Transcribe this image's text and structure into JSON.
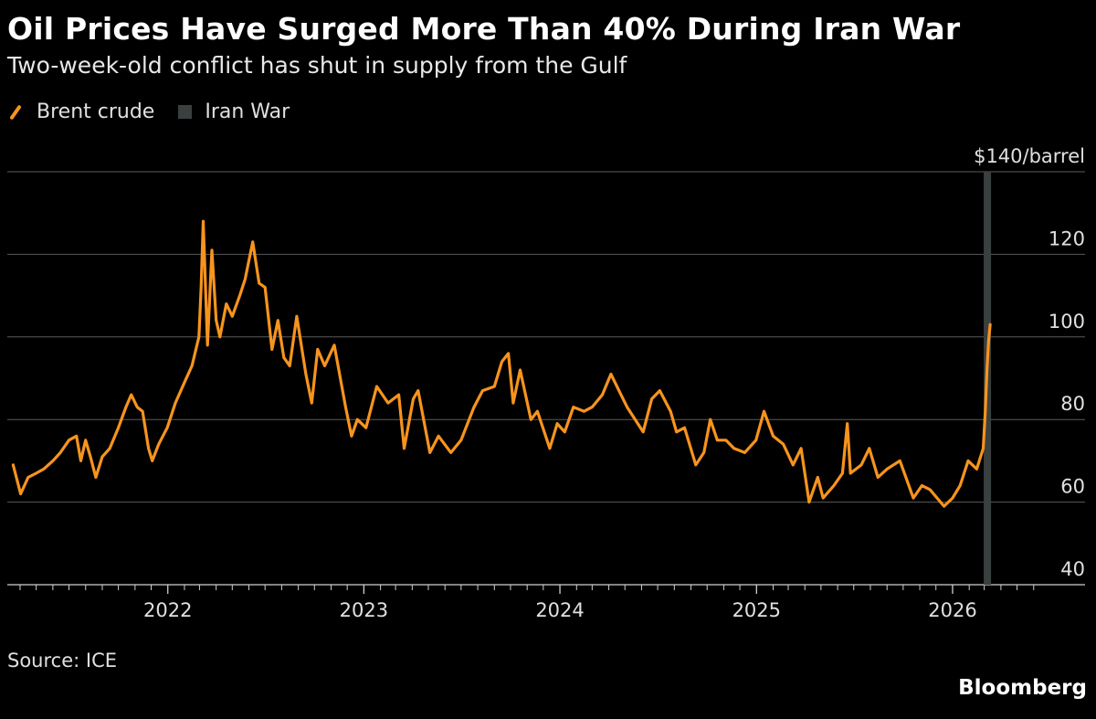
{
  "chart_data": {
    "type": "line",
    "title": "Oil Prices Have Surged More Than 40% During Iran War",
    "subtitle": "Two-week-old conflict has shut in supply from the Gulf",
    "ylabel": "$140/barrel",
    "ylim": [
      40,
      140
    ],
    "yticks": [
      {
        "value": 140,
        "label": "$140/barrel"
      },
      {
        "value": 120,
        "label": "120"
      },
      {
        "value": 100,
        "label": "100"
      },
      {
        "value": 80,
        "label": "80"
      },
      {
        "value": 60,
        "label": "60"
      },
      {
        "value": 40,
        "label": "40"
      }
    ],
    "xlim": [
      "2021-03-15",
      "2026-06-15"
    ],
    "xticks": [
      {
        "date": "2022-01-01",
        "label": "2022"
      },
      {
        "date": "2023-01-01",
        "label": "2023"
      },
      {
        "date": "2024-01-01",
        "label": "2024"
      },
      {
        "date": "2025-01-01",
        "label": "2025"
      },
      {
        "date": "2026-01-01",
        "label": "2026"
      }
    ],
    "grid": true,
    "legend": [
      {
        "label": "Brent crude",
        "kind": "line",
        "color": "#f7941d"
      },
      {
        "label": "Iran War",
        "kind": "area",
        "color": "#3a3f3f"
      }
    ],
    "shaded_region": {
      "name": "Iran War",
      "start": "2026-02-28",
      "end": "2026-03-13"
    },
    "series": [
      {
        "name": "Brent crude",
        "color": "#f7941d",
        "points": [
          [
            "2021-03-19",
            69
          ],
          [
            "2021-04-02",
            62
          ],
          [
            "2021-04-16",
            66
          ],
          [
            "2021-05-01",
            67
          ],
          [
            "2021-05-15",
            68
          ],
          [
            "2021-06-01",
            70
          ],
          [
            "2021-06-15",
            72
          ],
          [
            "2021-07-01",
            75
          ],
          [
            "2021-07-15",
            76
          ],
          [
            "2021-07-23",
            70
          ],
          [
            "2021-08-01",
            75
          ],
          [
            "2021-08-10",
            71
          ],
          [
            "2021-08-20",
            66
          ],
          [
            "2021-09-01",
            71
          ],
          [
            "2021-09-15",
            73
          ],
          [
            "2021-10-01",
            78
          ],
          [
            "2021-10-15",
            83
          ],
          [
            "2021-10-25",
            86
          ],
          [
            "2021-11-05",
            83
          ],
          [
            "2021-11-15",
            82
          ],
          [
            "2021-11-26",
            73
          ],
          [
            "2021-12-03",
            70
          ],
          [
            "2021-12-15",
            74
          ],
          [
            "2021-12-31",
            78
          ],
          [
            "2022-01-15",
            84
          ],
          [
            "2022-02-01",
            89
          ],
          [
            "2022-02-15",
            93
          ],
          [
            "2022-02-28",
            100
          ],
          [
            "2022-03-04",
            112
          ],
          [
            "2022-03-08",
            128
          ],
          [
            "2022-03-16",
            98
          ],
          [
            "2022-03-24",
            121
          ],
          [
            "2022-04-01",
            104
          ],
          [
            "2022-04-08",
            100
          ],
          [
            "2022-04-20",
            108
          ],
          [
            "2022-05-01",
            105
          ],
          [
            "2022-05-15",
            110
          ],
          [
            "2022-05-25",
            114
          ],
          [
            "2022-06-08",
            123
          ],
          [
            "2022-06-20",
            113
          ],
          [
            "2022-07-01",
            112
          ],
          [
            "2022-07-14",
            97
          ],
          [
            "2022-07-25",
            104
          ],
          [
            "2022-08-05",
            95
          ],
          [
            "2022-08-16",
            93
          ],
          [
            "2022-08-29",
            105
          ],
          [
            "2022-09-15",
            91
          ],
          [
            "2022-09-26",
            84
          ],
          [
            "2022-10-07",
            97
          ],
          [
            "2022-10-20",
            93
          ],
          [
            "2022-11-07",
            98
          ],
          [
            "2022-11-28",
            83
          ],
          [
            "2022-12-09",
            76
          ],
          [
            "2022-12-20",
            80
          ],
          [
            "2023-01-05",
            78
          ],
          [
            "2023-01-25",
            88
          ],
          [
            "2023-02-15",
            84
          ],
          [
            "2023-03-07",
            86
          ],
          [
            "2023-03-17",
            73
          ],
          [
            "2023-04-03",
            85
          ],
          [
            "2023-04-12",
            87
          ],
          [
            "2023-05-04",
            72
          ],
          [
            "2023-05-20",
            76
          ],
          [
            "2023-06-12",
            72
          ],
          [
            "2023-07-01",
            75
          ],
          [
            "2023-07-25",
            83
          ],
          [
            "2023-08-10",
            87
          ],
          [
            "2023-09-01",
            88
          ],
          [
            "2023-09-15",
            94
          ],
          [
            "2023-09-27",
            96
          ],
          [
            "2023-10-06",
            84
          ],
          [
            "2023-10-19",
            92
          ],
          [
            "2023-11-08",
            80
          ],
          [
            "2023-11-20",
            82
          ],
          [
            "2023-12-13",
            73
          ],
          [
            "2023-12-27",
            79
          ],
          [
            "2024-01-10",
            77
          ],
          [
            "2024-01-26",
            83
          ],
          [
            "2024-02-15",
            82
          ],
          [
            "2024-03-01",
            83
          ],
          [
            "2024-03-20",
            86
          ],
          [
            "2024-04-05",
            91
          ],
          [
            "2024-04-20",
            87
          ],
          [
            "2024-05-05",
            83
          ],
          [
            "2024-06-04",
            77
          ],
          [
            "2024-06-20",
            85
          ],
          [
            "2024-07-05",
            87
          ],
          [
            "2024-07-25",
            82
          ],
          [
            "2024-08-05",
            77
          ],
          [
            "2024-08-20",
            78
          ],
          [
            "2024-09-10",
            69
          ],
          [
            "2024-09-25",
            72
          ],
          [
            "2024-10-07",
            80
          ],
          [
            "2024-10-20",
            75
          ],
          [
            "2024-11-05",
            75
          ],
          [
            "2024-11-20",
            73
          ],
          [
            "2024-12-10",
            72
          ],
          [
            "2024-12-31",
            75
          ],
          [
            "2025-01-15",
            82
          ],
          [
            "2025-02-01",
            76
          ],
          [
            "2025-02-20",
            74
          ],
          [
            "2025-03-10",
            69
          ],
          [
            "2025-03-25",
            73
          ],
          [
            "2025-04-09",
            60
          ],
          [
            "2025-04-25",
            66
          ],
          [
            "2025-05-05",
            61
          ],
          [
            "2025-05-25",
            64
          ],
          [
            "2025-06-10",
            67
          ],
          [
            "2025-06-19",
            79
          ],
          [
            "2025-06-25",
            67
          ],
          [
            "2025-07-15",
            69
          ],
          [
            "2025-07-30",
            73
          ],
          [
            "2025-08-15",
            66
          ],
          [
            "2025-09-01",
            68
          ],
          [
            "2025-09-25",
            70
          ],
          [
            "2025-10-20",
            61
          ],
          [
            "2025-11-05",
            64
          ],
          [
            "2025-11-20",
            63
          ],
          [
            "2025-12-16",
            59
          ],
          [
            "2026-01-01",
            61
          ],
          [
            "2026-01-15",
            64
          ],
          [
            "2026-01-30",
            70
          ],
          [
            "2026-02-15",
            68
          ],
          [
            "2026-02-27",
            73
          ],
          [
            "2026-03-03",
            82
          ],
          [
            "2026-03-06",
            92
          ],
          [
            "2026-03-09",
            99
          ],
          [
            "2026-03-12",
            103
          ]
        ]
      }
    ]
  },
  "source": "Source: ICE",
  "brand": "Bloomberg"
}
